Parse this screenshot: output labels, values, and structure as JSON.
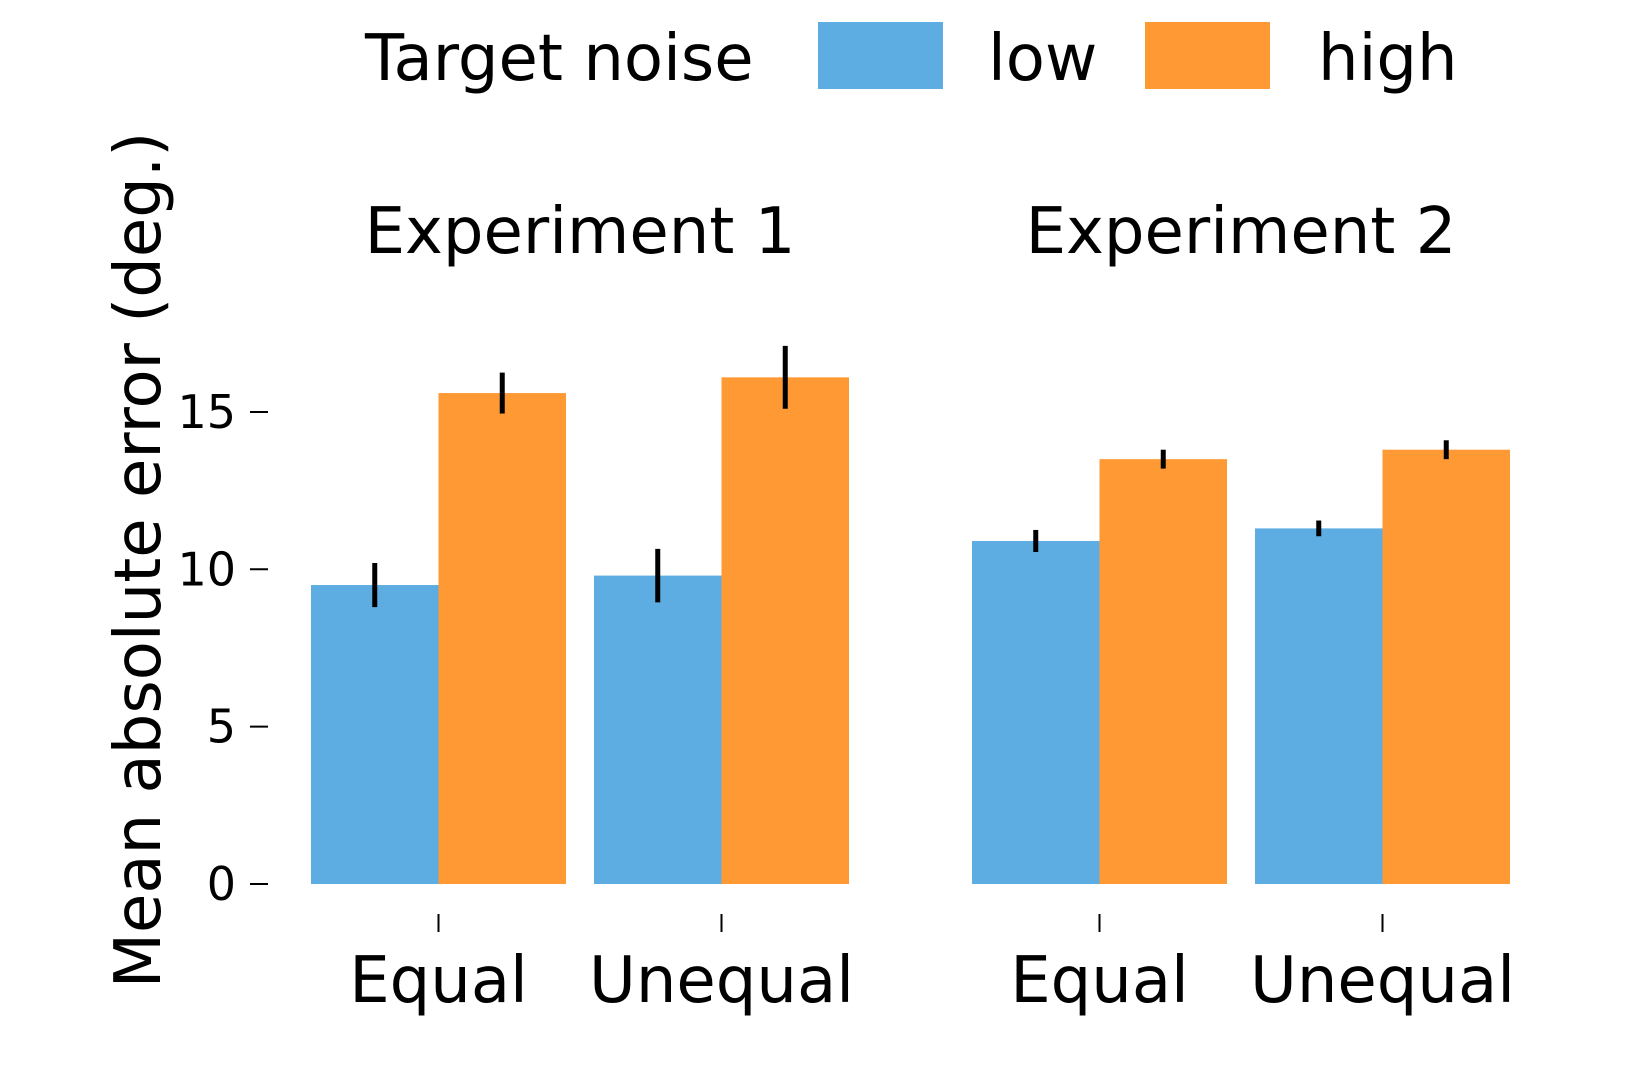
{
  "chart_data": {
    "type": "bar",
    "ylabel": "Mean absolute error (deg.)",
    "xlabel": "",
    "ylim": [
      0,
      17
    ],
    "yticks": [
      0,
      5,
      10,
      15
    ],
    "grid": false,
    "legend": {
      "title": "Target noise",
      "placement": "top",
      "entries": [
        "low",
        "high"
      ]
    },
    "colors": {
      "low": "#5DADE2",
      "high": "#FF9933"
    },
    "panels": [
      {
        "title": "Experiment 1",
        "categories": [
          "Equal",
          "Unequal"
        ],
        "series": [
          {
            "name": "low",
            "values": [
              9.5,
              9.8
            ],
            "errors": [
              0.7,
              0.85
            ]
          },
          {
            "name": "high",
            "values": [
              15.6,
              16.1
            ],
            "errors": [
              0.65,
              1.0
            ]
          }
        ]
      },
      {
        "title": "Experiment 2",
        "categories": [
          "Equal",
          "Unequal"
        ],
        "series": [
          {
            "name": "low",
            "values": [
              10.9,
              11.3
            ],
            "errors": [
              0.35,
              0.25
            ]
          },
          {
            "name": "high",
            "values": [
              13.5,
              13.8
            ],
            "errors": [
              0.3,
              0.3
            ]
          }
        ]
      }
    ]
  }
}
